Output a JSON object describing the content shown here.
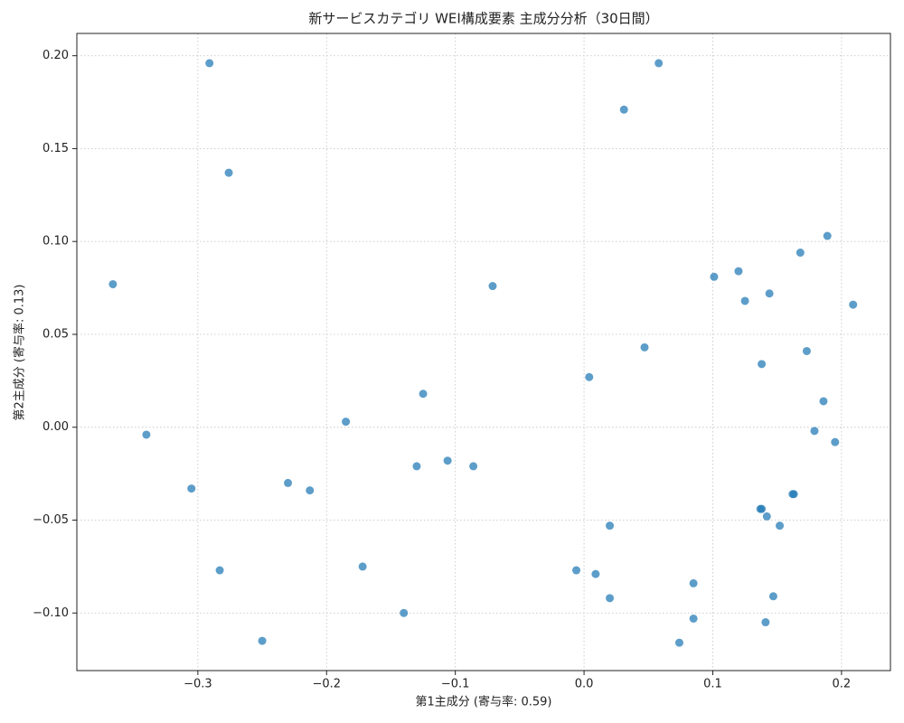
{
  "chart_data": {
    "type": "scatter",
    "title": "新サービスカテゴリ WEI構成要素 主成分分析（30日間）",
    "xlabel": "第1主成分 (寄与率: 0.59)",
    "ylabel": "第2主成分 (寄与率: 0.13)",
    "color": "#1f77b4",
    "grid": true,
    "xlim": [
      -0.394,
      0.238
    ],
    "ylim": [
      -0.131,
      0.212
    ],
    "xticks": [
      {
        "value": -0.3,
        "label": "−0.3"
      },
      {
        "value": -0.2,
        "label": "−0.2"
      },
      {
        "value": -0.1,
        "label": "−0.1"
      },
      {
        "value": 0,
        "label": "0.0"
      },
      0.1,
      0.2
    ],
    "yticks": [
      {
        "value": -0.1,
        "label": "−0.10"
      },
      {
        "value": -0.05,
        "label": "−0.05"
      },
      {
        "value": 0,
        "label": "0.00"
      },
      {
        "value": 0.05,
        "label": "0.05"
      },
      {
        "value": 0.1,
        "label": "0.10"
      },
      {
        "value": 0.15,
        "label": "0.15"
      },
      {
        "value": 0.2,
        "label": "0.20"
      }
    ],
    "x": [
      -0.291,
      -0.276,
      -0.366,
      -0.34,
      -0.305,
      -0.283,
      -0.25,
      -0.23,
      -0.213,
      -0.185,
      -0.172,
      -0.14,
      -0.13,
      -0.125,
      -0.106,
      -0.086,
      -0.071,
      -0.006,
      0.004,
      0.009,
      0.02,
      0.02,
      0.031,
      0.047,
      0.058,
      0.074,
      0.085,
      0.085,
      0.101,
      0.12,
      0.125,
      0.138,
      0.138,
      0.142,
      0.141,
      0.144,
      0.147,
      0.152,
      0.163,
      0.168,
      0.173,
      0.179,
      0.186,
      0.189,
      0.195,
      0.209,
      0.137,
      0.162
    ],
    "values": [
      0.196,
      0.137,
      0.077,
      -0.004,
      -0.033,
      -0.077,
      -0.115,
      -0.03,
      -0.034,
      0.003,
      -0.075,
      -0.1,
      -0.021,
      0.018,
      -0.018,
      -0.021,
      0.076,
      -0.077,
      0.027,
      -0.079,
      -0.053,
      -0.092,
      0.171,
      0.043,
      0.196,
      -0.116,
      -0.084,
      -0.103,
      0.081,
      0.084,
      0.068,
      0.034,
      -0.044,
      -0.048,
      -0.105,
      0.072,
      -0.091,
      -0.053,
      -0.036,
      0.094,
      0.041,
      -0.002,
      0.014,
      0.103,
      -0.008,
      0.066,
      -0.044,
      -0.036
    ]
  }
}
